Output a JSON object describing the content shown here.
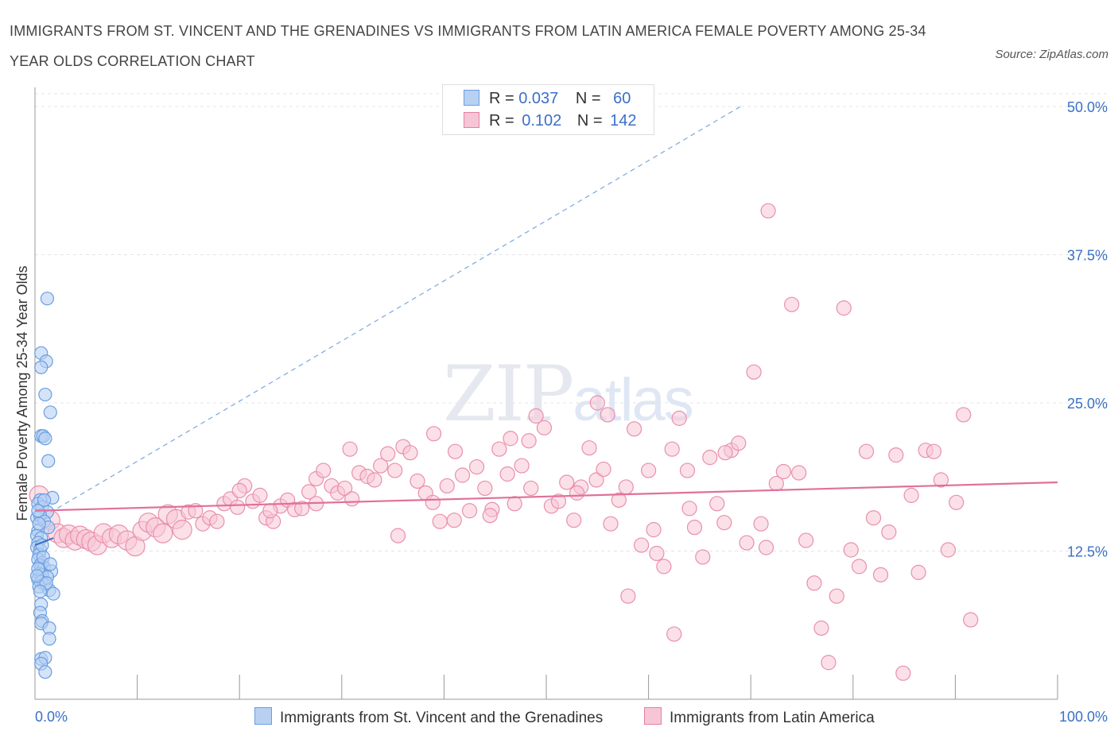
{
  "title_line1": "IMMIGRANTS FROM ST. VINCENT AND THE GRENADINES VS IMMIGRANTS FROM LATIN AMERICA FEMALE POVERTY AMONG 25-34",
  "title_line2": "YEAR OLDS CORRELATION CHART",
  "source": "Source: ZipAtlas.com",
  "watermark": {
    "zip": "ZIP",
    "atlas": "atlas"
  },
  "legend": {
    "r_label": "R =",
    "n_label": "N =",
    "blue": {
      "r": "0.037",
      "n": "60"
    },
    "pink": {
      "r": "0.102",
      "n": "142"
    }
  },
  "colors": {
    "blue": "#6a9ee0",
    "blue_fill": "#b8d1f3",
    "pink": "#e57fa0",
    "pink_fill": "#f7c6d6",
    "pink_line": "#e0709a",
    "blue_line": "#3a6fc7"
  },
  "chart_data": {
    "type": "scatter",
    "title": "IMMIGRANTS FROM ST. VINCENT AND THE GRENADINES VS IMMIGRANTS FROM LATIN AMERICA FEMALE POVERTY AMONG 25-34 YEAR OLDS CORRELATION CHART",
    "xlabel": "",
    "ylabel": "Female Poverty Among 25-34 Year Olds",
    "xlim": [
      0,
      100
    ],
    "ylim": [
      0,
      50
    ],
    "x_tick_labels": [
      "0.0%",
      "100.0%"
    ],
    "y_ticks": [
      12.5,
      25.0,
      37.5,
      50.0
    ],
    "y_tick_labels": [
      "12.5%",
      "25.0%",
      "37.5%",
      "50.0%"
    ],
    "grid": "horizontal dashed",
    "legend_position": "bottom",
    "series": [
      {
        "name": "Immigrants from St. Vincent and the Grenadines",
        "color": "#6a9ee0",
        "trend": {
          "x": [
            0,
            69
          ],
          "y": [
            15.0,
            50.0
          ],
          "style": "dashed"
        },
        "points": [
          [
            1.2,
            33.8
          ],
          [
            0.6,
            29.2
          ],
          [
            1.1,
            28.5
          ],
          [
            0.6,
            28.0
          ],
          [
            1.0,
            25.7
          ],
          [
            1.5,
            24.2
          ],
          [
            0.6,
            22.2
          ],
          [
            0.8,
            22.2
          ],
          [
            1.0,
            22.0
          ],
          [
            1.3,
            20.1
          ],
          [
            1.7,
            17.0
          ],
          [
            0.5,
            16.8
          ],
          [
            0.3,
            16.5
          ],
          [
            0.7,
            16.2
          ],
          [
            1.2,
            15.8
          ],
          [
            0.2,
            15.3
          ],
          [
            0.5,
            15.5
          ],
          [
            0.9,
            15.0
          ],
          [
            1.3,
            14.5
          ],
          [
            0.3,
            14.2
          ],
          [
            0.2,
            13.8
          ],
          [
            0.6,
            13.6
          ],
          [
            0.3,
            13.2
          ],
          [
            0.2,
            12.8
          ],
          [
            0.5,
            12.6
          ],
          [
            0.4,
            12.2
          ],
          [
            0.3,
            11.8
          ],
          [
            0.7,
            11.5
          ],
          [
            0.5,
            11.3
          ],
          [
            0.9,
            11.1
          ],
          [
            1.6,
            10.8
          ],
          [
            0.4,
            10.6
          ],
          [
            0.7,
            10.5
          ],
          [
            1.2,
            10.3
          ],
          [
            0.3,
            10.1
          ],
          [
            0.6,
            9.9
          ],
          [
            0.9,
            9.7
          ],
          [
            0.4,
            9.5
          ],
          [
            1.4,
            9.2
          ],
          [
            1.8,
            8.9
          ],
          [
            0.6,
            8.0
          ],
          [
            0.5,
            7.3
          ],
          [
            0.7,
            6.6
          ],
          [
            0.6,
            6.4
          ],
          [
            1.4,
            6.0
          ],
          [
            1.4,
            5.1
          ],
          [
            0.6,
            3.4
          ],
          [
            1.0,
            3.5
          ],
          [
            0.6,
            3.0
          ],
          [
            1.0,
            2.3
          ],
          [
            0.3,
            11.0
          ],
          [
            0.8,
            12.0
          ],
          [
            1.1,
            9.8
          ],
          [
            0.4,
            14.8
          ],
          [
            0.9,
            16.8
          ],
          [
            0.3,
            15.9
          ],
          [
            0.7,
            13.0
          ],
          [
            1.5,
            11.4
          ],
          [
            0.2,
            10.4
          ],
          [
            0.5,
            9.1
          ]
        ]
      },
      {
        "name": "Immigrants from Latin America",
        "color": "#e57fa0",
        "trend": {
          "x": [
            0,
            100
          ],
          "y": [
            15.9,
            18.3
          ],
          "style": "solid"
        },
        "points": [
          [
            0.4,
            17.2
          ],
          [
            1.5,
            15.1
          ],
          [
            2.2,
            14.0
          ],
          [
            2.8,
            13.6
          ],
          [
            3.3,
            13.9
          ],
          [
            3.9,
            13.4
          ],
          [
            4.4,
            13.8
          ],
          [
            5.0,
            13.5
          ],
          [
            5.5,
            13.3
          ],
          [
            6.1,
            13.0
          ],
          [
            6.7,
            14.0
          ],
          [
            7.5,
            13.6
          ],
          [
            8.2,
            13.9
          ],
          [
            9.0,
            13.4
          ],
          [
            9.8,
            12.9
          ],
          [
            10.5,
            14.2
          ],
          [
            11.1,
            14.9
          ],
          [
            11.8,
            14.5
          ],
          [
            12.5,
            14.0
          ],
          [
            13.0,
            15.6
          ],
          [
            13.8,
            15.2
          ],
          [
            14.4,
            14.3
          ],
          [
            15.0,
            15.8
          ],
          [
            15.7,
            15.9
          ],
          [
            16.4,
            14.8
          ],
          [
            17.1,
            15.3
          ],
          [
            17.8,
            15.0
          ],
          [
            18.5,
            16.5
          ],
          [
            19.1,
            16.9
          ],
          [
            19.8,
            16.2
          ],
          [
            20.5,
            18.0
          ],
          [
            21.3,
            16.7
          ],
          [
            22.0,
            17.2
          ],
          [
            22.6,
            15.3
          ],
          [
            23.3,
            15.0
          ],
          [
            24.0,
            16.3
          ],
          [
            24.7,
            16.8
          ],
          [
            25.4,
            16.0
          ],
          [
            26.1,
            16.1
          ],
          [
            26.8,
            17.5
          ],
          [
            27.5,
            18.6
          ],
          [
            28.2,
            19.3
          ],
          [
            29.0,
            18.0
          ],
          [
            29.6,
            17.4
          ],
          [
            30.3,
            17.8
          ],
          [
            31.0,
            16.9
          ],
          [
            31.7,
            19.1
          ],
          [
            32.5,
            18.8
          ],
          [
            33.2,
            18.5
          ],
          [
            33.8,
            19.7
          ],
          [
            34.5,
            20.7
          ],
          [
            35.2,
            19.3
          ],
          [
            36.0,
            21.3
          ],
          [
            36.7,
            20.8
          ],
          [
            37.4,
            18.4
          ],
          [
            38.2,
            17.4
          ],
          [
            38.9,
            16.6
          ],
          [
            39.6,
            15.0
          ],
          [
            40.3,
            18.0
          ],
          [
            41.1,
            20.9
          ],
          [
            41.8,
            18.9
          ],
          [
            42.5,
            15.9
          ],
          [
            43.2,
            19.6
          ],
          [
            44.0,
            17.8
          ],
          [
            44.7,
            16.0
          ],
          [
            45.4,
            21.1
          ],
          [
            46.2,
            19.0
          ],
          [
            46.9,
            16.5
          ],
          [
            47.6,
            19.7
          ],
          [
            48.3,
            21.8
          ],
          [
            49.0,
            23.9
          ],
          [
            49.8,
            22.9
          ],
          [
            50.5,
            16.3
          ],
          [
            51.2,
            16.7
          ],
          [
            52.0,
            18.3
          ],
          [
            52.7,
            15.1
          ],
          [
            53.4,
            17.9
          ],
          [
            54.2,
            21.2
          ],
          [
            54.9,
            18.5
          ],
          [
            55.6,
            19.4
          ],
          [
            56.3,
            14.8
          ],
          [
            57.1,
            16.8
          ],
          [
            57.8,
            17.9
          ],
          [
            58.6,
            22.8
          ],
          [
            59.3,
            13.0
          ],
          [
            60.0,
            19.3
          ],
          [
            60.8,
            12.3
          ],
          [
            61.5,
            11.2
          ],
          [
            62.3,
            21.1
          ],
          [
            63.0,
            23.7
          ],
          [
            63.8,
            19.3
          ],
          [
            64.5,
            14.5
          ],
          [
            65.3,
            12.0
          ],
          [
            66.0,
            20.4
          ],
          [
            66.7,
            16.5
          ],
          [
            67.4,
            14.9
          ],
          [
            68.1,
            21.0
          ],
          [
            68.8,
            21.6
          ],
          [
            69.6,
            13.2
          ],
          [
            70.3,
            27.6
          ],
          [
            71.0,
            14.8
          ],
          [
            71.7,
            41.2
          ],
          [
            72.5,
            18.2
          ],
          [
            73.2,
            19.2
          ],
          [
            74.0,
            33.3
          ],
          [
            74.7,
            19.1
          ],
          [
            75.4,
            13.4
          ],
          [
            76.2,
            9.8
          ],
          [
            76.9,
            6.0
          ],
          [
            77.6,
            3.1
          ],
          [
            78.4,
            8.7
          ],
          [
            79.1,
            33.0
          ],
          [
            79.8,
            12.6
          ],
          [
            80.6,
            11.2
          ],
          [
            81.3,
            20.9
          ],
          [
            82.0,
            15.3
          ],
          [
            82.7,
            10.5
          ],
          [
            83.5,
            14.1
          ],
          [
            84.2,
            20.6
          ],
          [
            84.9,
            2.2
          ],
          [
            85.7,
            17.2
          ],
          [
            86.4,
            10.7
          ],
          [
            87.1,
            21.0
          ],
          [
            87.9,
            20.9
          ],
          [
            88.6,
            18.5
          ],
          [
            89.3,
            12.6
          ],
          [
            90.1,
            16.6
          ],
          [
            90.8,
            24.0
          ],
          [
            58.0,
            8.7
          ],
          [
            62.5,
            5.5
          ],
          [
            91.5,
            6.7
          ],
          [
            55.0,
            25.0
          ],
          [
            56.0,
            24.0
          ],
          [
            44.5,
            15.5
          ],
          [
            41.0,
            15.1
          ],
          [
            35.5,
            13.8
          ],
          [
            27.5,
            16.5
          ],
          [
            23.0,
            15.9
          ],
          [
            60.5,
            14.3
          ],
          [
            39.0,
            22.4
          ],
          [
            67.5,
            20.8
          ],
          [
            48.5,
            17.8
          ],
          [
            30.8,
            21.1
          ],
          [
            20.0,
            17.6
          ],
          [
            53.0,
            17.4
          ],
          [
            46.5,
            22.0
          ],
          [
            64.0,
            16.1
          ],
          [
            71.5,
            12.8
          ]
        ]
      }
    ]
  }
}
